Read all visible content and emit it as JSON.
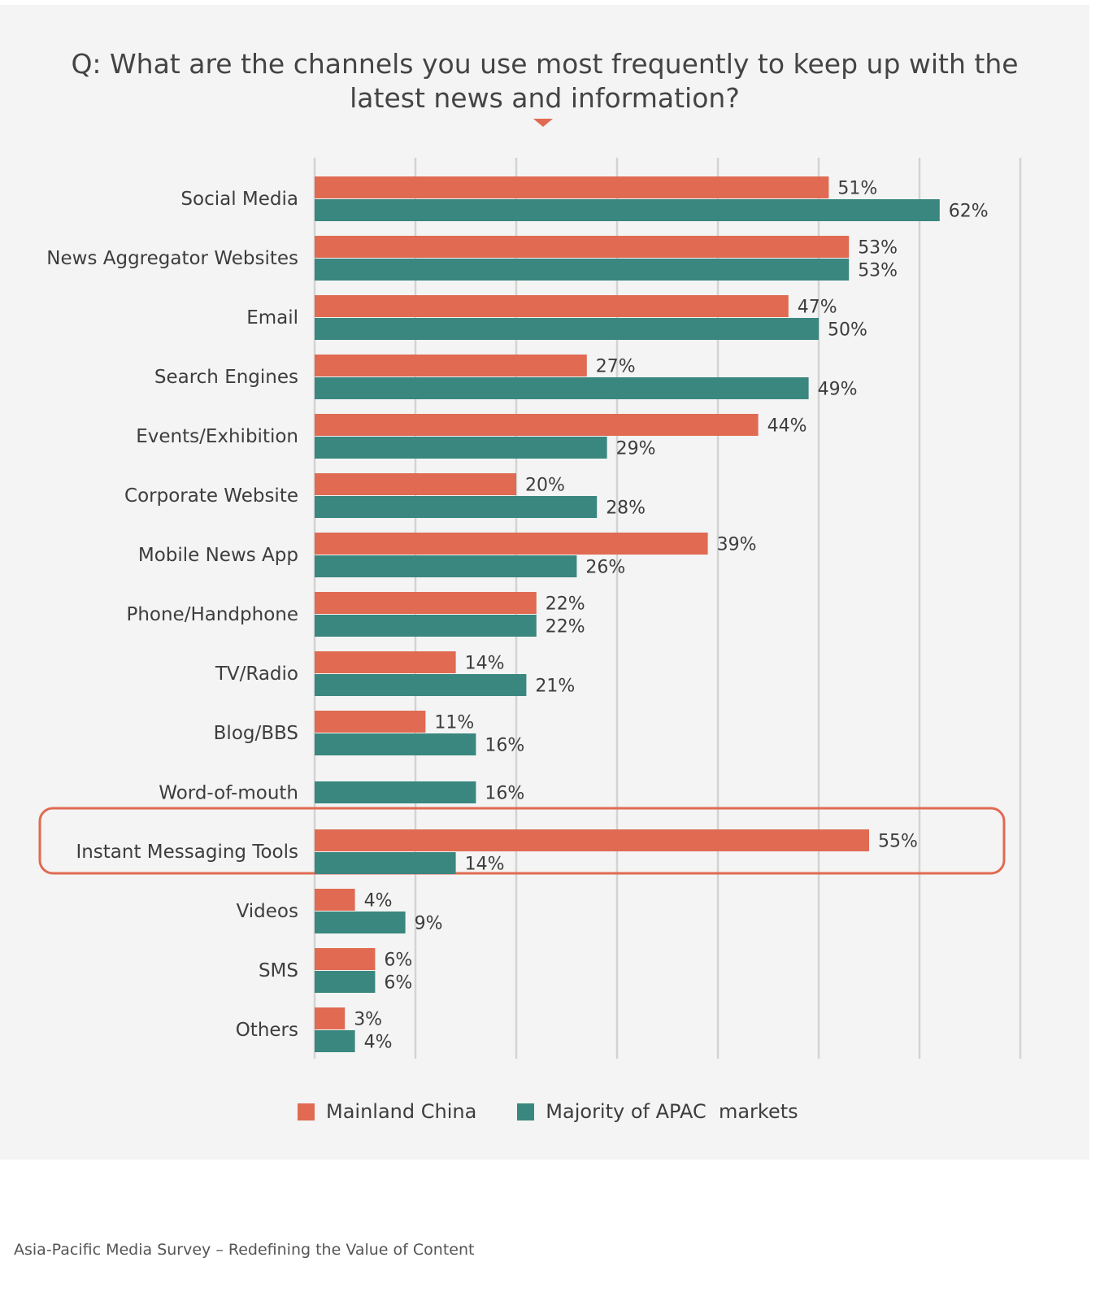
{
  "chart_data": {
    "type": "bar",
    "orientation": "horizontal",
    "title": "Q: What are the channels you use most frequently to keep up with the latest news and information?",
    "categories": [
      "Social Media",
      "News Aggregator Websites",
      "Email",
      "Search Engines",
      "Events/Exhibition",
      "Corporate Website",
      "Mobile News App",
      "Phone/Handphone",
      "TV/Radio",
      "Blog/BBS",
      "Word-of-mouth",
      "Instant Messaging Tools",
      "Videos",
      "SMS",
      "Others"
    ],
    "series": [
      {
        "name": "Mainland China",
        "color": "#e06a52",
        "values": [
          51,
          53,
          47,
          27,
          44,
          20,
          39,
          22,
          14,
          11,
          null,
          55,
          4,
          6,
          3
        ],
        "labels": [
          "51%",
          "53%",
          "47%",
          "27%",
          "44%",
          "20%",
          "39%",
          "22%",
          "14%",
          "11%",
          "",
          "55%",
          "4%",
          "6%",
          "3%"
        ]
      },
      {
        "name": "Majority of APAC  markets",
        "color": "#3a877f",
        "values": [
          62,
          53,
          50,
          49,
          29,
          28,
          26,
          22,
          21,
          16,
          16,
          14,
          9,
          6,
          4
        ],
        "labels": [
          "62%",
          "53%",
          "50%",
          "49%",
          "29%",
          "28%",
          "26%",
          "22%",
          "21%",
          "16%",
          "16%",
          "14%",
          "9%",
          "6%",
          "4%"
        ]
      }
    ],
    "xlim": [
      0,
      70
    ],
    "grid": true,
    "highlighted_category": "Instant Messaging Tools",
    "legend": "bottom"
  },
  "footer": "Asia-Pacific Media Survey – Redefining the Value of Content",
  "colors": {
    "accent": "#e06a52",
    "secondary": "#3a877f",
    "background": "#f3f4f3"
  }
}
